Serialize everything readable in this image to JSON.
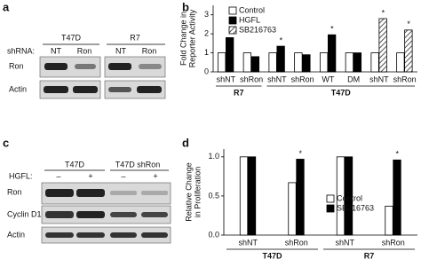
{
  "panel_a": {
    "letter": "a",
    "cell_lines": [
      "T47D",
      "R7"
    ],
    "lane_title": "shRNA:",
    "lanes": [
      "NT",
      "Ron",
      "NT",
      "Ron"
    ],
    "rows": [
      "Ron",
      "Actin"
    ]
  },
  "panel_c": {
    "letter": "c",
    "cell_lines": [
      "T47D",
      "T47D shRon"
    ],
    "lane_title": "HGFL:",
    "lanes": [
      "–",
      "+",
      "–",
      "+"
    ],
    "rows": [
      "Ron",
      "Cyclin D1",
      "Actin"
    ]
  },
  "chart_data": [
    {
      "type": "bar",
      "label": "b",
      "ylabel": [
        "Fold Change in",
        "Reporter Activity"
      ],
      "categories": [
        "shNT",
        "shRon",
        "shNT",
        "shRon",
        "WT",
        "DM",
        "shNT",
        "shRon"
      ],
      "groups": [
        {
          "label": "R7",
          "size": 2
        },
        {
          "label": "T47D",
          "size": 6
        }
      ],
      "series": [
        {
          "name": "Control",
          "color": "#ffffff",
          "values": [
            1.0,
            1.0,
            1.0,
            1.0,
            1.0,
            1.0,
            1.0,
            1.0
          ]
        },
        {
          "name": "HGFL",
          "color": "#000000",
          "values": [
            1.8,
            0.8,
            1.35,
            0.9,
            1.95,
            1.0,
            null,
            null
          ]
        },
        {
          "name": "SB216763",
          "color": "#aaaaaa",
          "pattern": "hatch",
          "values": [
            null,
            null,
            null,
            null,
            null,
            null,
            2.8,
            2.2
          ]
        }
      ],
      "significance": [
        "*",
        null,
        "*",
        null,
        "*",
        null,
        "*",
        "*"
      ],
      "ylim": [
        0,
        3.5
      ],
      "yticks": [
        0,
        1,
        2,
        3
      ],
      "legend": "upper left"
    },
    {
      "type": "bar",
      "label": "d",
      "ylabel": [
        "Relative Change",
        "in Proliferation"
      ],
      "categories": [
        "shNT",
        "shRon",
        "shNT",
        "shRon"
      ],
      "groups": [
        {
          "label": "T47D",
          "size": 2
        },
        {
          "label": "R7",
          "size": 2
        }
      ],
      "series": [
        {
          "name": "Control",
          "color": "#ffffff",
          "values": [
            1.0,
            0.67,
            1.0,
            0.37
          ]
        },
        {
          "name": "SB216763",
          "color": "#000000",
          "values": [
            1.0,
            0.97,
            1.0,
            0.96
          ]
        }
      ],
      "significance": [
        null,
        "*",
        null,
        "*"
      ],
      "ylim": [
        0,
        1.1
      ],
      "yticks": [
        {
          "value": 0,
          "label": "0.0"
        },
        {
          "value": 0.5,
          "label": "0.5"
        },
        {
          "value": 1,
          "label": "1.0"
        }
      ],
      "legend": "center right"
    }
  ]
}
